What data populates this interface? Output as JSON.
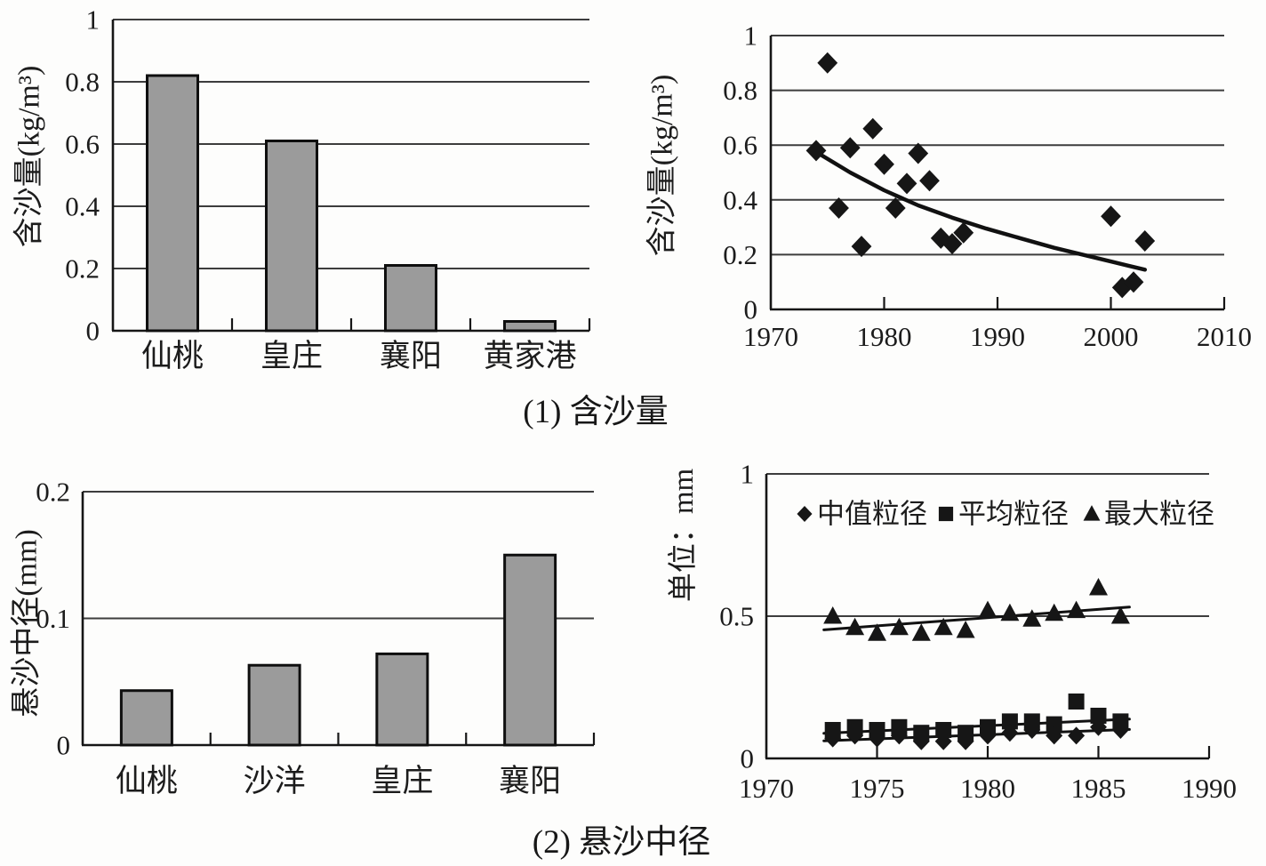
{
  "figure": {
    "captions": [
      {
        "label": "(1) 含沙量"
      },
      {
        "label": "(2) 悬沙中径"
      }
    ]
  },
  "chart_data": [
    {
      "id": "concentration-by-station",
      "type": "bar",
      "title": "",
      "ylabel": "含沙量(kg/m³)",
      "categories": [
        "仙桃",
        "皇庄",
        "襄阳",
        "黄家港"
      ],
      "values": [
        0.82,
        0.61,
        0.21,
        0.03
      ],
      "ylim": [
        0,
        1
      ],
      "yticks": [
        0,
        0.2,
        0.4,
        0.6,
        0.8,
        1
      ],
      "grid": true,
      "bar_color": "#9b9b9b"
    },
    {
      "id": "concentration-by-year",
      "type": "scatter",
      "title": "",
      "ylabel": "含沙量(kg/m³)",
      "xlim": [
        1970,
        2010
      ],
      "ylim": [
        0,
        1
      ],
      "xticks": [
        1970,
        1980,
        1990,
        2000,
        2010
      ],
      "yticks": [
        0,
        0.2,
        0.4,
        0.6,
        0.8,
        1
      ],
      "grid": true,
      "marker": "diamond",
      "points": [
        [
          1974,
          0.58
        ],
        [
          1975,
          0.9
        ],
        [
          1976,
          0.37
        ],
        [
          1977,
          0.59
        ],
        [
          1978,
          0.23
        ],
        [
          1979,
          0.66
        ],
        [
          1980,
          0.53
        ],
        [
          1981,
          0.37
        ],
        [
          1982,
          0.46
        ],
        [
          1983,
          0.57
        ],
        [
          1984,
          0.47
        ],
        [
          1985,
          0.26
        ],
        [
          1986,
          0.24
        ],
        [
          1987,
          0.28
        ],
        [
          2000,
          0.34
        ],
        [
          2001,
          0.08
        ],
        [
          2002,
          0.1
        ],
        [
          2003,
          0.25
        ]
      ],
      "trend": [
        [
          1974,
          0.575
        ],
        [
          1977,
          0.5
        ],
        [
          1980,
          0.435
        ],
        [
          1983,
          0.38
        ],
        [
          1986,
          0.335
        ],
        [
          1989,
          0.295
        ],
        [
          1992,
          0.26
        ],
        [
          1995,
          0.225
        ],
        [
          1998,
          0.195
        ],
        [
          2000,
          0.175
        ],
        [
          2003,
          0.145
        ]
      ]
    },
    {
      "id": "grainsize-by-station",
      "type": "bar",
      "title": "",
      "ylabel": "悬沙中径(mm)",
      "categories": [
        "仙桃",
        "沙洋",
        "皇庄",
        "襄阳"
      ],
      "values": [
        0.043,
        0.063,
        0.072,
        0.15
      ],
      "ylim": [
        0,
        0.2
      ],
      "yticks": [
        0,
        0.1,
        0.2
      ],
      "grid": true,
      "bar_color": "#9b9b9b"
    },
    {
      "id": "grainsize-by-year",
      "type": "scatter",
      "title": "",
      "ylabel": "单位：mm",
      "xlim": [
        1970,
        1990
      ],
      "ylim": [
        0,
        1
      ],
      "xticks": [
        1970,
        1975,
        1980,
        1985,
        1990
      ],
      "yticks": [
        0,
        0.5,
        1
      ],
      "grid": true,
      "legend_position": "top-inside",
      "x": [
        1973,
        1974,
        1975,
        1976,
        1977,
        1978,
        1979,
        1980,
        1981,
        1982,
        1983,
        1984,
        1985,
        1986
      ],
      "series": [
        {
          "name": "中值粒径",
          "marker": "diamond",
          "values": [
            0.07,
            0.08,
            0.07,
            0.08,
            0.06,
            0.06,
            0.06,
            0.08,
            0.09,
            0.1,
            0.08,
            0.08,
            0.11,
            0.1
          ],
          "trend": [
            [
              1972.6,
              0.062
            ],
            [
              1986.4,
              0.102
            ]
          ]
        },
        {
          "name": "平均粒径",
          "marker": "square",
          "values": [
            0.1,
            0.11,
            0.1,
            0.11,
            0.09,
            0.1,
            0.09,
            0.11,
            0.13,
            0.13,
            0.12,
            0.2,
            0.15,
            0.13
          ],
          "trend": [
            [
              1972.6,
              0.088
            ],
            [
              1986.4,
              0.138
            ]
          ]
        },
        {
          "name": "最大粒径",
          "marker": "triangle",
          "values": [
            0.5,
            0.46,
            0.44,
            0.46,
            0.44,
            0.46,
            0.45,
            0.52,
            0.51,
            0.49,
            0.51,
            0.52,
            0.6,
            0.5
          ],
          "trend": [
            [
              1972.6,
              0.452
            ],
            [
              1986.4,
              0.532
            ]
          ]
        }
      ]
    }
  ],
  "style": {
    "ink_color": "#161616",
    "grid_color": "#3d3d3d",
    "bar_fill": "#9b9b9b"
  }
}
